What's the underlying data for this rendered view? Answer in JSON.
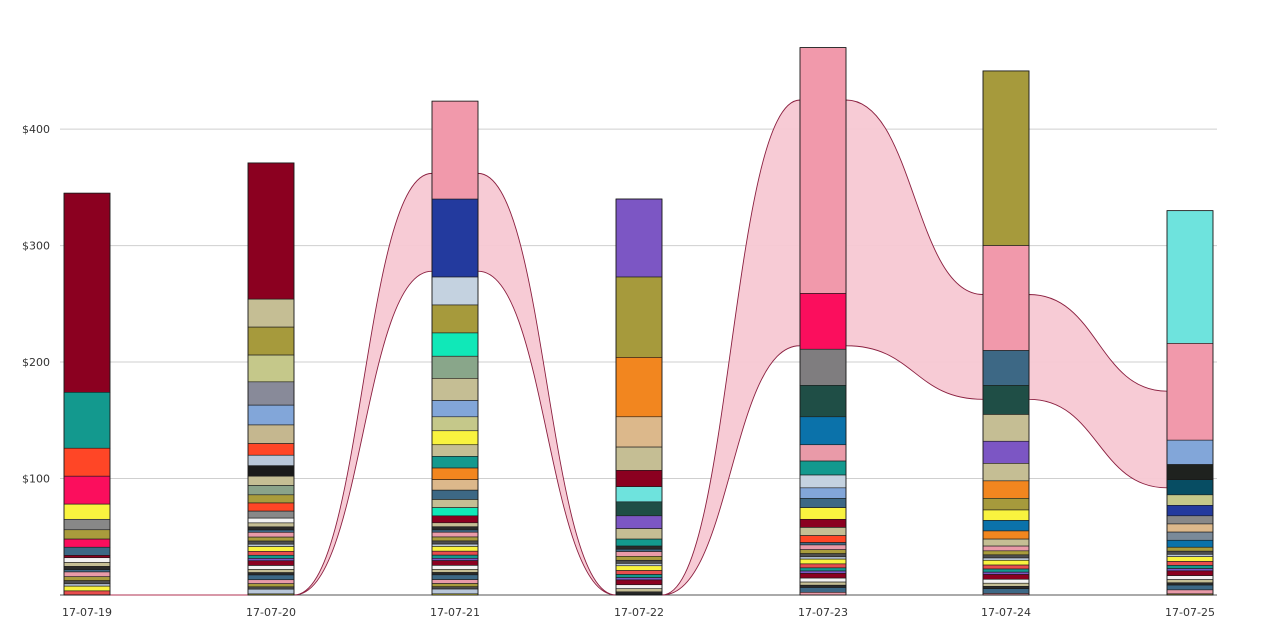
{
  "chart_data": {
    "type": "bar",
    "stacked": true,
    "categories": [
      "17-07-19",
      "17-07-20",
      "17-07-21",
      "17-07-22",
      "17-07-23",
      "17-07-24",
      "17-07-25"
    ],
    "yticks": [
      {
        "value": 100,
        "label": "$100"
      },
      {
        "value": 200,
        "label": "$200"
      },
      {
        "value": 300,
        "label": "$300"
      },
      {
        "value": 400,
        "label": "$400"
      }
    ],
    "ylim": [
      0,
      500
    ],
    "grid": true,
    "highlight_color": "#f199ab",
    "highlight": [
      0,
      0,
      84,
      0,
      211,
      90,
      83
    ],
    "small_colors": [
      "#8b0020",
      "#f3f3f3",
      "#c5be94",
      "#2a2a2a",
      "#3d6885",
      "#e99aa8",
      "#a99c3c",
      "#4d4d4d",
      "#b9c7d9",
      "#f9f33f",
      "#e84d4d",
      "#13998e",
      "#7c56c4"
    ],
    "stacks": [
      {
        "total": 345,
        "segments": [
          {
            "value": 171,
            "color": "#8b0020"
          },
          {
            "value": 48,
            "color": "#13998e"
          },
          {
            "value": 24,
            "color": "#ff4626"
          },
          {
            "value": 24,
            "color": "#fb0e5d"
          },
          {
            "value": 13,
            "color": "#f9f33f"
          },
          {
            "value": 9,
            "color": "#888888"
          },
          {
            "value": 8,
            "color": "#a99c3c"
          },
          {
            "value": 7,
            "color": "#fb0e5d"
          },
          {
            "value": 7,
            "color": "#3d6885"
          }
        ]
      },
      {
        "total": 371,
        "segments": [
          {
            "value": 117,
            "color": "#8b0020"
          },
          {
            "value": 24,
            "color": "#c5be94"
          },
          {
            "value": 24,
            "color": "#a69a3c"
          },
          {
            "value": 23,
            "color": "#c5c88a"
          },
          {
            "value": 20,
            "color": "#888a99"
          },
          {
            "value": 17,
            "color": "#82a6d9"
          },
          {
            "value": 16,
            "color": "#c5b78f"
          },
          {
            "value": 10,
            "color": "#ff4626"
          },
          {
            "value": 9,
            "color": "#b9c7d9"
          },
          {
            "value": 9,
            "color": "#1a1a1a"
          },
          {
            "value": 8,
            "color": "#c5be94"
          },
          {
            "value": 8,
            "color": "#8aa38a"
          },
          {
            "value": 7,
            "color": "#a99c3c"
          },
          {
            "value": 7,
            "color": "#ff4626"
          },
          {
            "value": 6,
            "color": "#888888"
          }
        ]
      },
      {
        "total": 424,
        "segments": [
          {
            "value": 84,
            "color": "#f199ab"
          },
          {
            "value": 67,
            "color": "#233a9e"
          },
          {
            "value": 24,
            "color": "#c4d2e0"
          },
          {
            "value": 24,
            "color": "#a69a3c"
          },
          {
            "value": 20,
            "color": "#10e8b8"
          },
          {
            "value": 19,
            "color": "#89a68a"
          },
          {
            "value": 19,
            "color": "#c5be94"
          },
          {
            "value": 14,
            "color": "#82a6d9"
          },
          {
            "value": 12,
            "color": "#c5c88a"
          },
          {
            "value": 12,
            "color": "#f9f33f"
          },
          {
            "value": 10,
            "color": "#c5be94"
          },
          {
            "value": 10,
            "color": "#13998e"
          },
          {
            "value": 10,
            "color": "#f2861f"
          },
          {
            "value": 9,
            "color": "#dcb88b"
          },
          {
            "value": 8,
            "color": "#3d6885"
          },
          {
            "value": 7,
            "color": "#c5be94"
          },
          {
            "value": 7,
            "color": "#10e8b8"
          },
          {
            "value": 6,
            "color": "#8b0020"
          }
        ]
      },
      {
        "total": 340,
        "segments": [
          {
            "value": 67,
            "color": "#7c56c4"
          },
          {
            "value": 69,
            "color": "#a69a3c"
          },
          {
            "value": 51,
            "color": "#f2861f"
          },
          {
            "value": 26,
            "color": "#dcb88b"
          },
          {
            "value": 20,
            "color": "#c5be94"
          },
          {
            "value": 14,
            "color": "#8b0020"
          },
          {
            "value": 13,
            "color": "#6ee3dd"
          },
          {
            "value": 12,
            "color": "#1f4e46"
          },
          {
            "value": 11,
            "color": "#7c56c4"
          },
          {
            "value": 9,
            "color": "#c5be94"
          },
          {
            "value": 6,
            "color": "#13998e"
          }
        ]
      },
      {
        "total": 470,
        "segments": [
          {
            "value": 211,
            "color": "#f199ab"
          },
          {
            "value": 48,
            "color": "#fb0e5d"
          },
          {
            "value": 31,
            "color": "#7f7d7f"
          },
          {
            "value": 27,
            "color": "#1f4e46"
          },
          {
            "value": 24,
            "color": "#0b72aa"
          },
          {
            "value": 14,
            "color": "#e99aa8"
          },
          {
            "value": 12,
            "color": "#13998e"
          },
          {
            "value": 11,
            "color": "#c4d2e0"
          },
          {
            "value": 9,
            "color": "#82a6d9"
          },
          {
            "value": 8,
            "color": "#3d6885"
          },
          {
            "value": 10,
            "color": "#f9f33f"
          },
          {
            "value": 7,
            "color": "#8b0020"
          },
          {
            "value": 7,
            "color": "#c5be94"
          },
          {
            "value": 6,
            "color": "#ff4626"
          }
        ]
      },
      {
        "total": 450,
        "segments": [
          {
            "value": 150,
            "color": "#a69a3c"
          },
          {
            "value": 90,
            "color": "#f199ab"
          },
          {
            "value": 30,
            "color": "#3d6885"
          },
          {
            "value": 25,
            "color": "#1f4e46"
          },
          {
            "value": 23,
            "color": "#c5be94"
          },
          {
            "value": 19,
            "color": "#7c56c4"
          },
          {
            "value": 15,
            "color": "#c5be94"
          },
          {
            "value": 15,
            "color": "#f2861f"
          },
          {
            "value": 10,
            "color": "#a69a3c"
          },
          {
            "value": 9,
            "color": "#f9f33f"
          },
          {
            "value": 9,
            "color": "#0b72aa"
          },
          {
            "value": 7,
            "color": "#f2861f"
          },
          {
            "value": 6,
            "color": "#c5be94"
          }
        ]
      },
      {
        "total": 330,
        "segments": [
          {
            "value": 114,
            "color": "#6ee3dd"
          },
          {
            "value": 83,
            "color": "#f199ab"
          },
          {
            "value": 21,
            "color": "#82a6d9"
          },
          {
            "value": 13,
            "color": "#1f221f"
          },
          {
            "value": 13,
            "color": "#074d63"
          },
          {
            "value": 9,
            "color": "#c5c88a"
          },
          {
            "value": 9,
            "color": "#233a9e"
          },
          {
            "value": 7,
            "color": "#888888"
          },
          {
            "value": 7,
            "color": "#dcb88b"
          },
          {
            "value": 7,
            "color": "#7a8a99"
          },
          {
            "value": 6,
            "color": "#0b72aa"
          }
        ]
      }
    ]
  }
}
